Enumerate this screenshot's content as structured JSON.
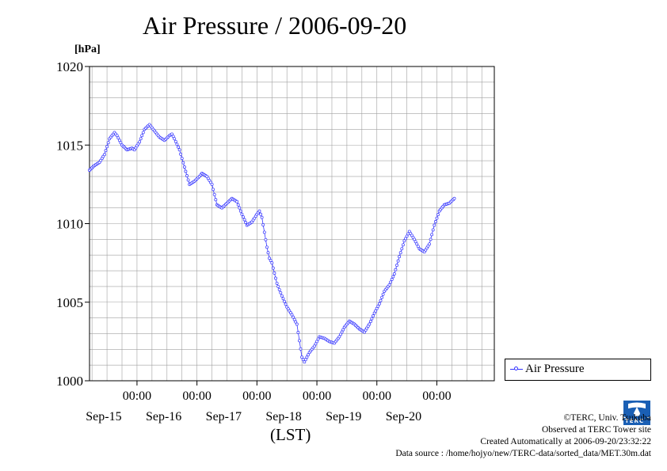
{
  "title": "Air Pressure / 2006-09-20",
  "unit": "[hPa]",
  "x_unit": "(LST)",
  "legend_label": "Air Pressure",
  "credits": {
    "copyright": "©TERC, Univ. Tsukuba",
    "observed": "Observed at TERC Tower site",
    "created": "Created Automatically at 2006-09-20/23:32:22",
    "source": "Data source : /home/hojyo/new/TERC-data/sorted_data/MET.30m.dat"
  },
  "logo_text": "TERC",
  "colors": {
    "series": "#3333ff",
    "grid": "#a0a0a0",
    "logo": "#1a5fb4"
  },
  "chart_data": {
    "type": "line",
    "title": "Air Pressure / 2006-09-20",
    "ylabel": "[hPa]",
    "xlabel": "(LST)",
    "ylim": [
      1000,
      1020
    ],
    "yticks": [
      1000,
      1005,
      1010,
      1015,
      1020
    ],
    "xlim_hours": [
      -19,
      143
    ],
    "xticks": [
      {
        "time": "00:00",
        "date": "Sep-15",
        "hour": 0
      },
      {
        "time": "00:00",
        "date": "Sep-16",
        "hour": 24
      },
      {
        "time": "00:00",
        "date": "Sep-17",
        "hour": 48
      },
      {
        "time": "00:00",
        "date": "Sep-18",
        "hour": 72
      },
      {
        "time": "00:00",
        "date": "Sep-19",
        "hour": 96
      },
      {
        "time": "00:00",
        "date": "Sep-20",
        "hour": 120
      }
    ],
    "grid": true,
    "legend_position": "bottom-right",
    "series": [
      {
        "name": "Air Pressure",
        "key_points_hour_value": [
          [
            -19,
            1013.4
          ],
          [
            -17,
            1013.7
          ],
          [
            -15,
            1013.9
          ],
          [
            -13,
            1014.4
          ],
          [
            -11,
            1015.4
          ],
          [
            -9,
            1015.8
          ],
          [
            -8,
            1015.6
          ],
          [
            -6,
            1015.0
          ],
          [
            -4,
            1014.7
          ],
          [
            -2,
            1014.8
          ],
          [
            -1,
            1014.7
          ],
          [
            1,
            1015.2
          ],
          [
            3,
            1016.0
          ],
          [
            5,
            1016.3
          ],
          [
            7,
            1015.9
          ],
          [
            9,
            1015.5
          ],
          [
            11,
            1015.3
          ],
          [
            13,
            1015.6
          ],
          [
            14,
            1015.7
          ],
          [
            15,
            1015.4
          ],
          [
            17,
            1014.7
          ],
          [
            19,
            1013.6
          ],
          [
            21,
            1012.5
          ],
          [
            23,
            1012.7
          ],
          [
            25,
            1013.0
          ],
          [
            26,
            1013.2
          ],
          [
            28,
            1013.0
          ],
          [
            30,
            1012.5
          ],
          [
            32,
            1011.2
          ],
          [
            34,
            1011.0
          ],
          [
            36,
            1011.3
          ],
          [
            38,
            1011.6
          ],
          [
            40,
            1011.4
          ],
          [
            42,
            1010.6
          ],
          [
            44,
            1009.9
          ],
          [
            46,
            1010.1
          ],
          [
            48,
            1010.6
          ],
          [
            49,
            1010.8
          ],
          [
            50,
            1010.4
          ],
          [
            52,
            1008.5
          ],
          [
            53,
            1007.8
          ],
          [
            54,
            1007.5
          ],
          [
            56,
            1006.2
          ],
          [
            58,
            1005.4
          ],
          [
            60,
            1004.7
          ],
          [
            62,
            1004.2
          ],
          [
            64,
            1003.6
          ],
          [
            66,
            1001.5
          ],
          [
            67,
            1001.2
          ],
          [
            69,
            1001.8
          ],
          [
            71,
            1002.2
          ],
          [
            73,
            1002.8
          ],
          [
            75,
            1002.7
          ],
          [
            77,
            1002.5
          ],
          [
            79,
            1002.4
          ],
          [
            81,
            1002.8
          ],
          [
            83,
            1003.4
          ],
          [
            85,
            1003.8
          ],
          [
            87,
            1003.6
          ],
          [
            89,
            1003.3
          ],
          [
            91,
            1003.1
          ],
          [
            93,
            1003.6
          ],
          [
            95,
            1004.3
          ],
          [
            97,
            1004.9
          ],
          [
            99,
            1005.7
          ],
          [
            101,
            1006.1
          ],
          [
            103,
            1006.8
          ],
          [
            105,
            1007.9
          ],
          [
            107,
            1008.9
          ],
          [
            109,
            1009.5
          ],
          [
            111,
            1009.0
          ],
          [
            113,
            1008.4
          ],
          [
            115,
            1008.2
          ],
          [
            117,
            1008.7
          ],
          [
            119,
            1009.9
          ],
          [
            121,
            1010.8
          ],
          [
            123,
            1011.2
          ],
          [
            125,
            1011.3
          ],
          [
            127,
            1011.6
          ]
        ]
      }
    ]
  }
}
